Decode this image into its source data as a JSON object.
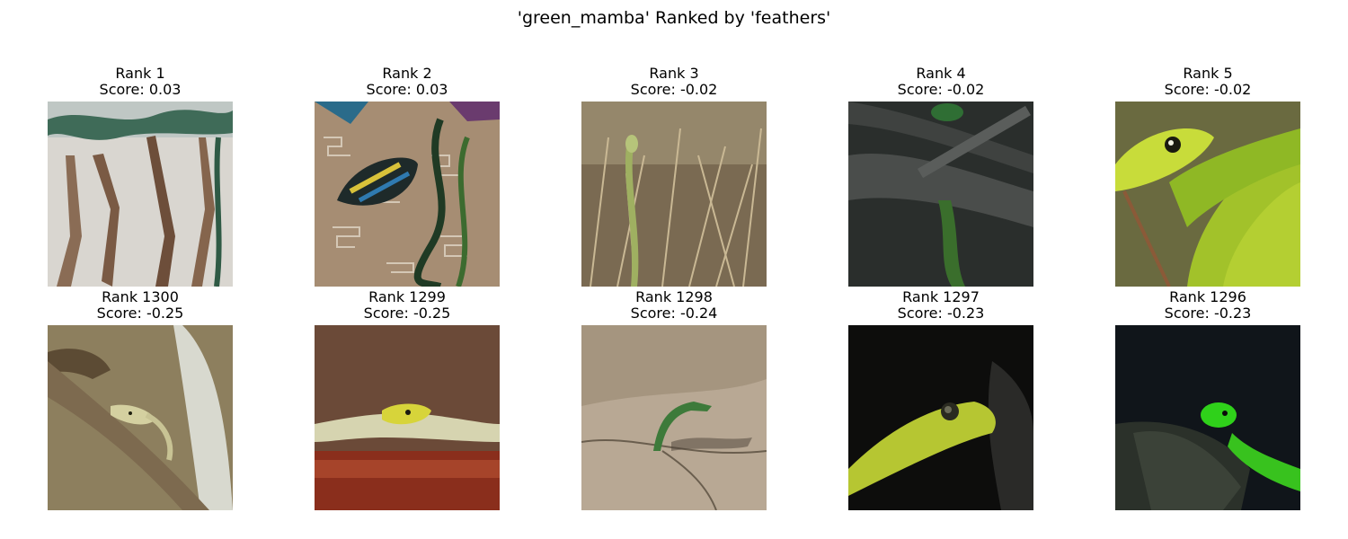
{
  "figure": {
    "title": "'green_mamba' Ranked by 'feathers'"
  },
  "panels": [
    {
      "rank": "Rank 1",
      "score": "Score: 0.03",
      "image": "green mamba on branches in enclosure"
    },
    {
      "rank": "Rank 2",
      "score": "Score: 0.03",
      "image": "green mamba on patterned fabric with colorful leaves"
    },
    {
      "rank": "Rank 3",
      "score": "Score: -0.02",
      "image": "green mamba in dry grass"
    },
    {
      "rank": "Rank 4",
      "score": "Score: -0.02",
      "image": "green mamba on dark branch"
    },
    {
      "rank": "Rank 5",
      "score": "Score: -0.02",
      "image": "close-up of green mamba head and scales"
    },
    {
      "rank": "Rank 1300",
      "score": "Score: -0.25",
      "image": "pale snake on branch in rocky enclosure"
    },
    {
      "rank": "Rank 1299",
      "score": "Score: -0.25",
      "image": "yellow-green snake on brown background"
    },
    {
      "rank": "Rank 1298",
      "score": "Score: -0.24",
      "image": "green snake emerging from rocky ground"
    },
    {
      "rank": "Rank 1297",
      "score": "Score: -0.23",
      "image": "yellow-green snake head on black background"
    },
    {
      "rank": "Rank 1296",
      "score": "Score: -0.23",
      "image": "bright green snake on dark log"
    }
  ]
}
